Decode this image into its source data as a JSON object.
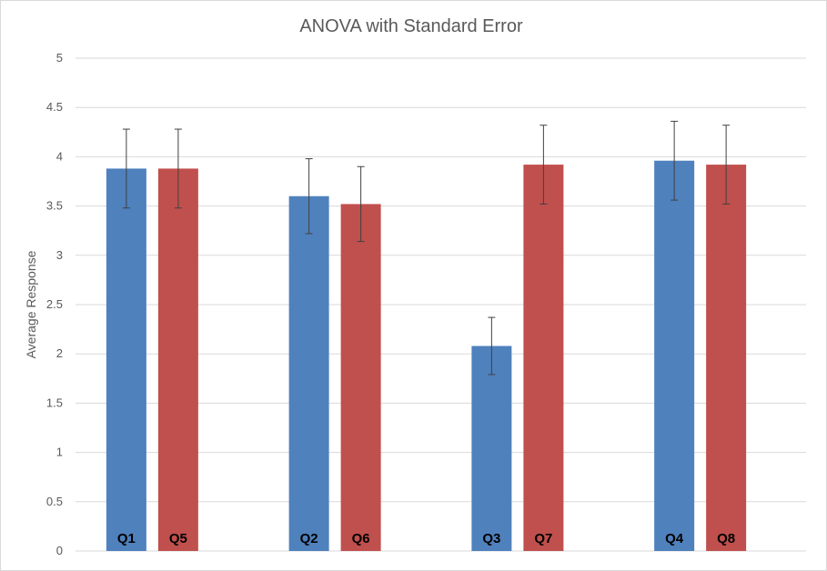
{
  "chart_data": {
    "type": "bar",
    "title": "ANOVA with Standard Error",
    "xlabel": "",
    "ylabel": "Average Response",
    "ylim": [
      0,
      5
    ],
    "yticks": [
      "0",
      "0.5",
      "1",
      "1.5",
      "2",
      "2.5",
      "3",
      "3.5",
      "4",
      "4.5",
      "5"
    ],
    "grid": true,
    "legend": "none",
    "groups": [
      {
        "bars": [
          {
            "label": "Q1",
            "value": 3.88,
            "error": 0.4,
            "color": "#4f81bd"
          },
          {
            "label": "Q5",
            "value": 3.88,
            "error": 0.4,
            "color": "#c0504d"
          }
        ]
      },
      {
        "bars": [
          {
            "label": "Q2",
            "value": 3.6,
            "error": 0.38,
            "color": "#4f81bd"
          },
          {
            "label": "Q6",
            "value": 3.52,
            "error": 0.38,
            "color": "#c0504d"
          }
        ]
      },
      {
        "bars": [
          {
            "label": "Q3",
            "value": 2.08,
            "error": 0.29,
            "color": "#4f81bd"
          },
          {
            "label": "Q7",
            "value": 3.92,
            "error": 0.4,
            "color": "#c0504d"
          }
        ]
      },
      {
        "bars": [
          {
            "label": "Q4",
            "value": 3.96,
            "error": 0.4,
            "color": "#4f81bd"
          },
          {
            "label": "Q8",
            "value": 3.92,
            "error": 0.4,
            "color": "#c0504d"
          }
        ]
      }
    ]
  }
}
